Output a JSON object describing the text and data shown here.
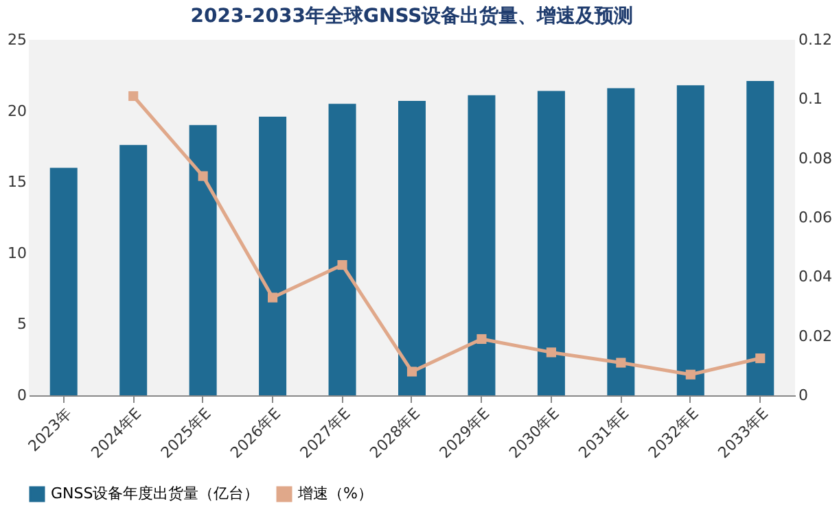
{
  "chart_data": {
    "type": "bar",
    "title": "2023-2033年全球GNSS设备出货量、增速及预测",
    "categories": [
      "2023年",
      "2024年E",
      "2025年E",
      "2026年E",
      "2027年E",
      "2028年E",
      "2029年E",
      "2030年E",
      "2031年E",
      "2032年E",
      "2033年E"
    ],
    "series": [
      {
        "name": "GNSS设备年度出货量（亿台）",
        "color": "#1f6b93",
        "values": [
          16.0,
          17.6,
          19.0,
          19.6,
          20.5,
          20.7,
          21.1,
          21.4,
          21.6,
          21.8,
          22.1
        ]
      },
      {
        "name": "增速（%）",
        "type": "line",
        "axis": "y2",
        "color": "#e0a88a",
        "marker": "square",
        "values": [
          null,
          0.101,
          0.074,
          0.033,
          0.044,
          0.008,
          0.019,
          0.0145,
          0.011,
          0.007,
          0.0125
        ]
      }
    ],
    "ylim": [
      0,
      25
    ],
    "yticks": [
      0,
      5,
      10,
      15,
      20,
      25
    ],
    "y2lim": [
      0,
      0.12
    ],
    "y2ticks": [
      0,
      0.02,
      0.04,
      0.06,
      0.08,
      0.1,
      0.12
    ],
    "grid": false,
    "legend": "bottom"
  }
}
